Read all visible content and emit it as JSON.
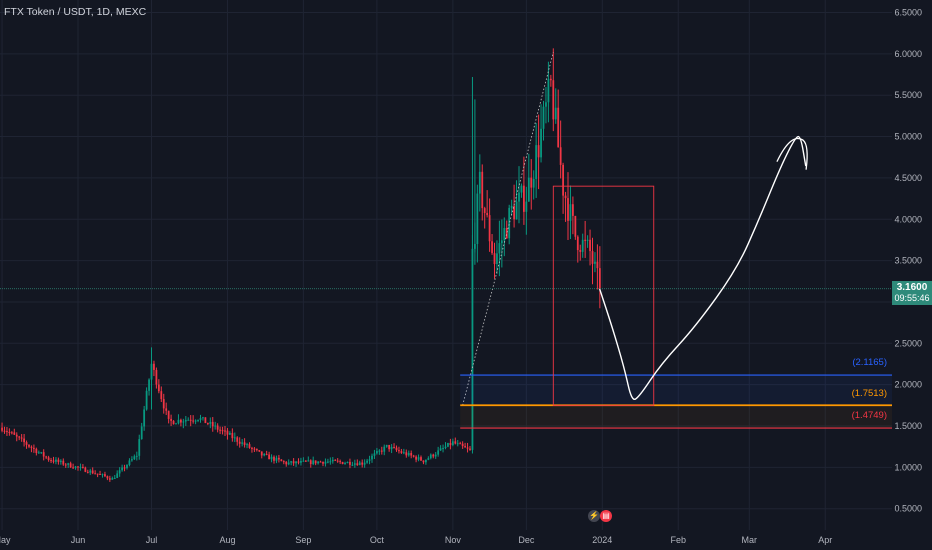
{
  "ticker": "FTX Token / USDT, 1D, MEXC",
  "current_price": {
    "value": "3.1600",
    "countdown": "09:55:46",
    "color": "#2e8a7a"
  },
  "levels": [
    {
      "label": "(2.1165)",
      "value": 2.1165,
      "color": "#2962ff"
    },
    {
      "label": "(1.7513)",
      "value": 1.7513,
      "color": "#ff9800"
    },
    {
      "label": "(1.4749)",
      "value": 1.4749,
      "color": "#f23645"
    }
  ],
  "events": [
    {
      "icon": "lightning-icon",
      "color": "#434651"
    },
    {
      "icon": "us-flag-icon",
      "color": "#f23645"
    }
  ],
  "chart_data": {
    "type": "candlestick",
    "title": "FTX Token / USDT, 1D, MEXC",
    "y_ticks": [
      "6.5000",
      "6.0000",
      "5.5000",
      "5.0000",
      "4.5000",
      "4.0000",
      "3.5000",
      "3.0000",
      "2.5000",
      "2.0000",
      "1.5000",
      "1.0000",
      "0.5000"
    ],
    "y_range": [
      0.4,
      6.6
    ],
    "x_ticks": [
      "May",
      "Jun",
      "Jul",
      "Aug",
      "Sep",
      "Oct",
      "Nov",
      "Dec",
      "2024",
      "Feb",
      "Mar",
      "Apr"
    ],
    "up_color": "#089981",
    "down_color": "#f23645",
    "anchors": [
      [
        "2023-05-01",
        1.48
      ],
      [
        "2023-05-20",
        1.1
      ],
      [
        "2023-06-05",
        0.96
      ],
      [
        "2023-06-15",
        0.86
      ],
      [
        "2023-06-25",
        1.15
      ],
      [
        "2023-07-01",
        2.25
      ],
      [
        "2023-07-08",
        1.55
      ],
      [
        "2023-07-20",
        1.6
      ],
      [
        "2023-08-01",
        1.4
      ],
      [
        "2023-08-15",
        1.15
      ],
      [
        "2023-08-25",
        1.05
      ],
      [
        "2023-09-10",
        1.07
      ],
      [
        "2023-09-25",
        1.05
      ],
      [
        "2023-10-05",
        1.25
      ],
      [
        "2023-10-20",
        1.08
      ],
      [
        "2023-11-01",
        1.3
      ],
      [
        "2023-11-08",
        1.2
      ],
      [
        "2023-11-09",
        3.6
      ],
      [
        "2023-11-12",
        4.4
      ],
      [
        "2023-11-18",
        3.5
      ],
      [
        "2023-11-25",
        4.1
      ],
      [
        "2023-12-01",
        4.3
      ],
      [
        "2023-12-06",
        4.9
      ],
      [
        "2023-12-11",
        5.6
      ],
      [
        "2023-12-16",
        4.4
      ],
      [
        "2023-12-21",
        3.8
      ],
      [
        "2023-12-27",
        3.6
      ],
      [
        "2023-12-31",
        3.16
      ]
    ],
    "trendline": {
      "from": [
        "2023-11-05",
        1.75
      ],
      "to": [
        "2023-12-12",
        6.02
      ]
    },
    "rectangle": {
      "from": [
        "2023-12-12",
        4.4
      ],
      "to": [
        "2024-01-22",
        1.75
      ],
      "color": "#f23645"
    },
    "projection": [
      [
        "2023-12-31",
        3.15
      ],
      [
        "2024-01-05",
        2.7
      ],
      [
        "2024-01-10",
        2.2
      ],
      [
        "2024-01-13",
        1.8
      ],
      [
        "2024-01-16",
        1.85
      ],
      [
        "2024-01-25",
        2.25
      ],
      [
        "2024-02-08",
        2.7
      ],
      [
        "2024-02-25",
        3.4
      ],
      [
        "2024-03-05",
        4.0
      ],
      [
        "2024-03-14",
        4.65
      ],
      [
        "2024-03-20",
        5.0
      ],
      [
        "2024-03-22",
        5.0
      ],
      [
        "2024-03-24",
        4.65
      ]
    ]
  }
}
